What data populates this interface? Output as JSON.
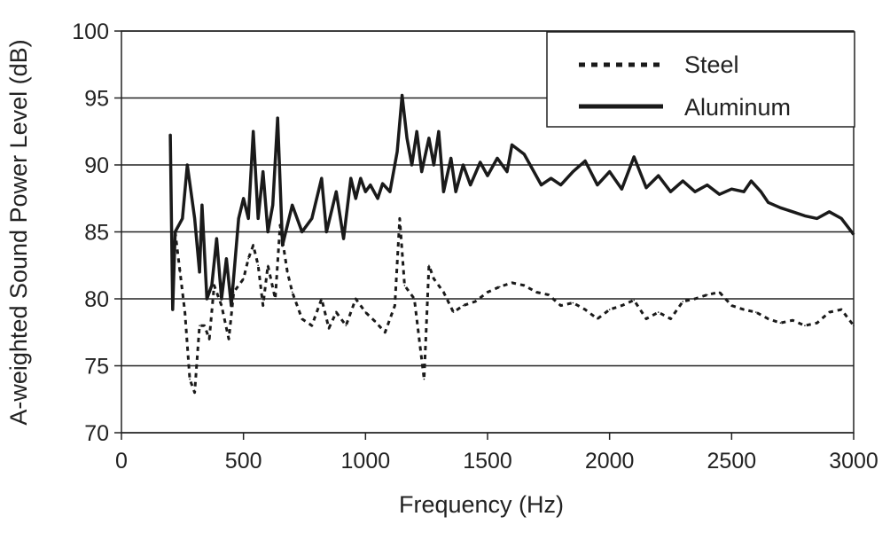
{
  "chart_data": {
    "type": "line",
    "title": "",
    "xlabel": "Frequency (Hz)",
    "ylabel": "A-weighted Sound Power Level (dB)",
    "xlim": [
      0,
      3000
    ],
    "ylim": [
      70,
      100
    ],
    "xticks": [
      "0",
      "500",
      "1000",
      "1500",
      "2000",
      "2500",
      "3000"
    ],
    "yticks": [
      "70",
      "75",
      "80",
      "85",
      "90",
      "95",
      "100"
    ],
    "grid": "horizontal",
    "legend_position": "top-right",
    "series": [
      {
        "name": "Steel",
        "style": "dotted",
        "color": "#1a1a1a",
        "x": [
          220,
          240,
          260,
          280,
          300,
          320,
          340,
          360,
          380,
          410,
          440,
          460,
          500,
          520,
          540,
          560,
          580,
          600,
          630,
          650,
          680,
          700,
          740,
          780,
          820,
          850,
          880,
          920,
          960,
          1000,
          1040,
          1080,
          1120,
          1140,
          1160,
          1200,
          1220,
          1240,
          1260,
          1280,
          1320,
          1360,
          1400,
          1450,
          1500,
          1550,
          1600,
          1650,
          1700,
          1750,
          1800,
          1850,
          1900,
          1950,
          2000,
          2050,
          2100,
          2150,
          2200,
          2250,
          2300,
          2350,
          2400,
          2450,
          2500,
          2550,
          2600,
          2650,
          2700,
          2750,
          2800,
          2850,
          2900,
          2950,
          3000
        ],
        "y": [
          85,
          82,
          79,
          74,
          73,
          78,
          78,
          77,
          81,
          79.5,
          77,
          80.5,
          81.5,
          83,
          84,
          82.5,
          79.5,
          82.5,
          80,
          85.5,
          82,
          80.5,
          78.5,
          78,
          80,
          77.8,
          79,
          78,
          80,
          79,
          78.3,
          77.5,
          79.5,
          86,
          81,
          80,
          77,
          74,
          82.5,
          81.5,
          80.5,
          79,
          79.5,
          79.8,
          80.5,
          80.9,
          81.2,
          81,
          80.5,
          80.3,
          79.5,
          79.7,
          79.2,
          78.5,
          79.2,
          79.5,
          79.9,
          78.5,
          79,
          78.5,
          79.8,
          80,
          80.3,
          80.5,
          79.5,
          79.2,
          79,
          78.5,
          78.2,
          78.4,
          78,
          78.2,
          79,
          79.2,
          78
        ]
      },
      {
        "name": "Aluminum",
        "style": "solid",
        "color": "#1a1a1a",
        "x": [
          200,
          210,
          220,
          250,
          270,
          300,
          320,
          330,
          350,
          370,
          390,
          410,
          430,
          450,
          480,
          500,
          520,
          540,
          560,
          580,
          600,
          620,
          640,
          660,
          700,
          740,
          780,
          820,
          840,
          880,
          910,
          940,
          960,
          980,
          1000,
          1020,
          1050,
          1070,
          1100,
          1130,
          1150,
          1170,
          1190,
          1210,
          1230,
          1260,
          1280,
          1300,
          1320,
          1350,
          1370,
          1400,
          1430,
          1470,
          1500,
          1540,
          1580,
          1600,
          1650,
          1690,
          1720,
          1760,
          1800,
          1850,
          1900,
          1950,
          2000,
          2050,
          2100,
          2150,
          2200,
          2250,
          2300,
          2350,
          2400,
          2450,
          2500,
          2550,
          2580,
          2620,
          2650,
          2700,
          2750,
          2800,
          2850,
          2900,
          2950,
          3000
        ],
        "y": [
          92.3,
          79.2,
          85,
          86,
          90,
          86,
          82,
          87,
          80,
          81,
          84.5,
          80,
          83,
          79.5,
          86,
          87.5,
          86,
          92.5,
          86,
          89.5,
          85,
          87,
          93.5,
          84,
          87,
          85,
          86,
          89,
          85,
          88,
          84.5,
          89,
          87.5,
          89,
          88,
          88.5,
          87.5,
          88.6,
          88,
          91,
          95.2,
          92,
          90,
          92.5,
          89.5,
          92,
          90,
          92.5,
          88,
          90.5,
          88,
          90,
          88.5,
          90.2,
          89.2,
          90.5,
          89.5,
          91.5,
          90.8,
          89.5,
          88.5,
          89,
          88.5,
          89.5,
          90.3,
          88.5,
          89.5,
          88.2,
          90.6,
          88.3,
          89.2,
          88,
          88.8,
          88,
          88.5,
          87.8,
          88.2,
          88,
          88.8,
          88,
          87.2,
          86.8,
          86.5,
          86.2,
          86,
          86.5,
          86,
          84.8
        ]
      }
    ]
  }
}
